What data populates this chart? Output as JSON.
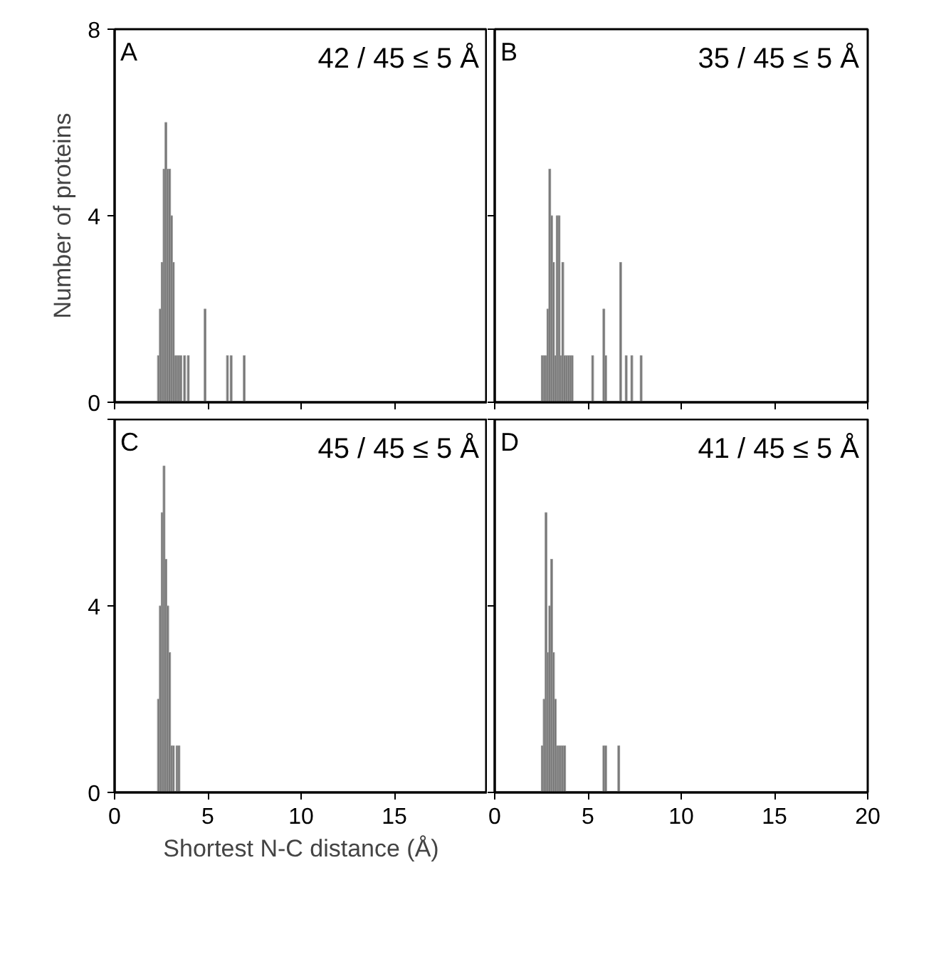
{
  "chart_data": [
    {
      "type": "histogram",
      "title": "A",
      "annotations": [
        "42 / 45 ≤ 5 Å"
      ],
      "ylabel": "Number of proteins",
      "color": "#6e6e6e",
      "bins": [
        2.3,
        2.4,
        2.5,
        2.6,
        2.7,
        2.8,
        2.9,
        3.0,
        3.1,
        3.2,
        3.3,
        3.4,
        3.5,
        3.6,
        3.7,
        3.8,
        3.9,
        4.0,
        4.1,
        4.2,
        4.3,
        4.4,
        4.5,
        4.6,
        4.7,
        4.8,
        4.9,
        5.0,
        5.1,
        5.2,
        5.3,
        5.4,
        5.5,
        5.6,
        5.7,
        5.8,
        5.9,
        6.0,
        6.1,
        6.2,
        6.3,
        6.4,
        6.5,
        6.6,
        6.7,
        6.8,
        6.9,
        7.0
      ],
      "values": [
        1,
        2,
        3,
        5,
        6,
        5,
        5,
        4,
        3,
        1,
        1,
        1,
        1,
        0,
        1,
        0,
        1,
        0,
        0,
        0,
        0,
        0,
        0,
        0,
        0,
        2,
        0,
        0,
        0,
        0,
        0,
        0,
        0,
        0,
        0,
        0,
        0,
        1,
        0,
        1,
        0,
        0,
        0,
        0,
        0,
        0,
        1
      ],
      "xlim": [
        0,
        20
      ],
      "ylim": [
        0,
        8
      ],
      "xticks": [
        {
          "value": 0,
          "label": null
        },
        {
          "value": 5,
          "label": null
        },
        {
          "value": 10,
          "label": null
        },
        {
          "value": 15,
          "label": null
        },
        {
          "value": 20,
          "label": null
        }
      ],
      "yticks": [
        0,
        4,
        8
      ],
      "tick_labels": "y",
      "grid": false
    },
    {
      "type": "histogram",
      "title": "B",
      "annotations": [
        "35 / 45 ≤ 5 Å"
      ],
      "color": "#6e6e6e",
      "bins": [
        2.3,
        2.4,
        2.5,
        2.6,
        2.7,
        2.8,
        2.9,
        3.0,
        3.1,
        3.2,
        3.3,
        3.4,
        3.5,
        3.6,
        3.7,
        3.8,
        3.9,
        4.0,
        4.1,
        4.2,
        4.3,
        4.4,
        4.5,
        4.6,
        4.7,
        4.8,
        4.9,
        5.0,
        5.1,
        5.2,
        5.3,
        5.4,
        5.5,
        5.6,
        5.7,
        5.8,
        5.9,
        6.0,
        6.1,
        6.2,
        6.3,
        6.4,
        6.5,
        6.6,
        6.7,
        6.8,
        6.9,
        7.0,
        7.1,
        7.2,
        7.3,
        7.4,
        7.5,
        7.6,
        7.7,
        7.8,
        7.9
      ],
      "values": [
        0,
        0,
        1,
        1,
        1,
        2,
        5,
        4,
        3,
        1,
        4,
        4,
        1,
        3,
        1,
        1,
        1,
        1,
        1,
        0,
        0,
        0,
        0,
        0,
        0,
        0,
        0,
        0,
        0,
        1,
        0,
        0,
        0,
        0,
        0,
        2,
        1,
        0,
        0,
        0,
        0,
        0,
        0,
        0,
        3,
        0,
        0,
        1,
        0,
        0,
        1,
        0,
        0,
        0,
        0,
        1
      ],
      "xlim": [
        0,
        20
      ],
      "ylim": [
        0,
        8
      ],
      "xticks": [
        {
          "value": 0,
          "label": null
        },
        {
          "value": 5,
          "label": null
        },
        {
          "value": 10,
          "label": null
        },
        {
          "value": 15,
          "label": null
        },
        {
          "value": 20,
          "label": null
        }
      ],
      "yticks": [
        {
          "value": 0,
          "label": null
        },
        {
          "value": 4,
          "label": null
        },
        {
          "value": 8,
          "label": null
        }
      ],
      "tick_labels": false,
      "grid": false
    },
    {
      "type": "histogram",
      "title": "C",
      "annotations": [
        "45 / 45 ≤ 5 Å"
      ],
      "xlabel": "Shortest N-C distance (Å)",
      "color": "#6e6e6e",
      "bins": [
        2.3,
        2.4,
        2.5,
        2.6,
        2.7,
        2.8,
        2.9,
        3.0,
        3.1,
        3.2,
        3.3,
        3.4,
        3.5
      ],
      "values": [
        2,
        4,
        6,
        7,
        5,
        4,
        3,
        1,
        1,
        0,
        1,
        1
      ],
      "xlim": [
        0,
        20
      ],
      "ylim": [
        0,
        8
      ],
      "xticks": [
        0,
        5,
        10,
        15,
        {
          "value": 20,
          "label": null
        }
      ],
      "yticks": [
        0,
        4,
        {
          "value": 8,
          "label": null
        }
      ],
      "grid": false
    },
    {
      "type": "histogram",
      "title": "D",
      "annotations": [
        "41 / 45 ≤ 5 Å"
      ],
      "color": "#6e6e6e",
      "bins": [
        2.3,
        2.4,
        2.5,
        2.6,
        2.7,
        2.8,
        2.9,
        3.0,
        3.1,
        3.2,
        3.3,
        3.4,
        3.5,
        3.6,
        3.7,
        3.8,
        3.9,
        4.0,
        4.1,
        4.2,
        4.3,
        4.4,
        4.5,
        4.6,
        4.7,
        4.8,
        4.9,
        5.0,
        5.1,
        5.2,
        5.3,
        5.4,
        5.5,
        5.6,
        5.7,
        5.8,
        5.9,
        6.0,
        6.1,
        6.2,
        6.3,
        6.4,
        6.5,
        6.6,
        6.7
      ],
      "values": [
        0,
        0,
        1,
        2,
        6,
        3,
        4,
        5,
        3,
        2,
        1,
        1,
        1,
        1,
        1,
        0,
        0,
        0,
        0,
        0,
        0,
        0,
        0,
        0,
        0,
        0,
        0,
        0,
        0,
        0,
        0,
        0,
        0,
        0,
        0,
        1,
        1,
        0,
        0,
        0,
        0,
        0,
        0,
        1
      ],
      "xlim": [
        0,
        20
      ],
      "ylim": [
        0,
        8
      ],
      "xticks": [
        0,
        5,
        10,
        15,
        20
      ],
      "yticks": [
        {
          "value": 0,
          "label": null
        },
        {
          "value": 4,
          "label": null
        },
        {
          "value": 8,
          "label": null
        }
      ],
      "tick_labels": "x",
      "grid": false
    }
  ]
}
